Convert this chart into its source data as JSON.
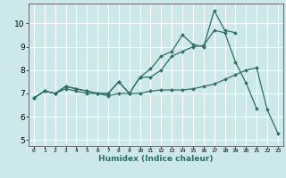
{
  "title": "",
  "xlabel": "Humidex (Indice chaleur)",
  "bg_color": "#cde8ea",
  "grid_color": "#ffffff",
  "line_color": "#2e6e65",
  "xlim": [
    -0.5,
    23.5
  ],
  "ylim": [
    4.75,
    10.85
  ],
  "yticks": [
    5,
    6,
    7,
    8,
    9,
    10
  ],
  "xticks": [
    0,
    1,
    2,
    3,
    4,
    5,
    6,
    7,
    8,
    9,
    10,
    11,
    12,
    13,
    14,
    15,
    16,
    17,
    18,
    19,
    20,
    21,
    22,
    23
  ],
  "series": [
    {
      "x": [
        0,
        1,
        2,
        3,
        4,
        5,
        6,
        7,
        8,
        9,
        10,
        11,
        12,
        13,
        14,
        15,
        16,
        17,
        18,
        19
      ],
      "y": [
        6.8,
        7.1,
        7.0,
        7.3,
        7.2,
        7.1,
        7.0,
        7.0,
        7.5,
        7.0,
        7.7,
        8.05,
        8.6,
        8.8,
        9.5,
        9.1,
        9.0,
        10.55,
        9.7,
        9.6
      ]
    },
    {
      "x": [
        0,
        1,
        2,
        3,
        4,
        5,
        6,
        7,
        8,
        9,
        10,
        11,
        12,
        13,
        14,
        15,
        16,
        17,
        18,
        19,
        20,
        21
      ],
      "y": [
        6.8,
        7.1,
        7.0,
        7.3,
        7.2,
        7.1,
        7.0,
        7.0,
        7.5,
        7.0,
        7.7,
        7.7,
        8.0,
        8.6,
        8.8,
        9.0,
        9.05,
        9.7,
        9.6,
        8.35,
        7.45,
        6.35
      ]
    },
    {
      "x": [
        0,
        1,
        2,
        3,
        4,
        5,
        6,
        7,
        8,
        9,
        10,
        11,
        12,
        13,
        14,
        15,
        16,
        17,
        18,
        19,
        20,
        21,
        22,
        23
      ],
      "y": [
        6.8,
        7.1,
        7.0,
        7.2,
        7.1,
        7.0,
        7.0,
        6.9,
        7.0,
        7.0,
        7.0,
        7.1,
        7.15,
        7.15,
        7.15,
        7.2,
        7.3,
        7.4,
        7.6,
        7.8,
        8.0,
        8.1,
        6.3,
        5.3
      ]
    }
  ]
}
